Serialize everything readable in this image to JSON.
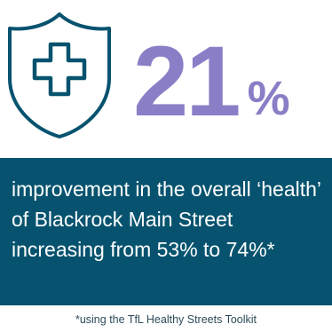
{
  "stat": {
    "number": "21",
    "unit": "%"
  },
  "panel": {
    "text": "improvement in the overall ‘health’ of Blackrock Main Street increasing from 53% to 74%*"
  },
  "footnote": {
    "text": "*using the TfL Healthy Streets Toolkit"
  },
  "icons": {
    "shield": "shield-plus-icon"
  },
  "colors": {
    "icon_stroke": "#07536f",
    "stat": "#8a7fc6",
    "panel_background": "#07536f",
    "panel_text": "#ffffff",
    "footnote": "#2d4a5a"
  }
}
